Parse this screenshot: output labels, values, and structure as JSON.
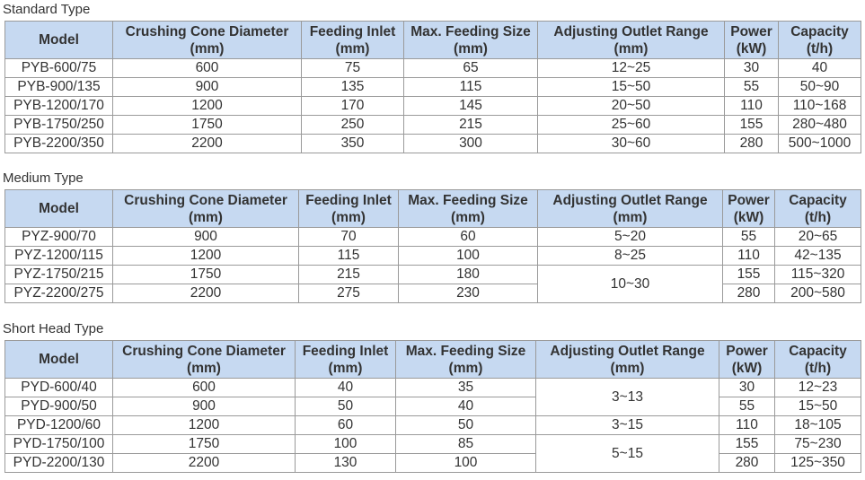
{
  "headers": [
    "Model",
    "Crushing Cone Diameter\n(mm)",
    "Feeding Inlet\n(mm)",
    "Max. Feeding Size\n(mm)",
    "Adjusting Outlet Range\n(mm)",
    "Power\n(kW)",
    "Capacity\n(t/h)"
  ],
  "colors": {
    "header_bg": "#c6d9f1",
    "border": "#9a9a9a",
    "text": "#333333"
  },
  "tables": [
    {
      "title": "Standard Type",
      "rows": [
        [
          "PYB-600/75",
          "600",
          "75",
          "65",
          "12~25",
          "30",
          "40"
        ],
        [
          "PYB-900/135",
          "900",
          "135",
          "115",
          "15~50",
          "55",
          "50~90"
        ],
        [
          "PYB-1200/170",
          "1200",
          "170",
          "145",
          "20~50",
          "110",
          "110~168"
        ],
        [
          "PYB-1750/250",
          "1750",
          "250",
          "215",
          "25~60",
          "155",
          "280~480"
        ],
        [
          "PYB-2200/350",
          "2200",
          "350",
          "300",
          "30~60",
          "280",
          "500~1000"
        ]
      ]
    },
    {
      "title": "Medium Type",
      "rows": [
        [
          "PYZ-900/70",
          "900",
          "70",
          "60",
          "5~20",
          "55",
          "20~65"
        ],
        [
          "PYZ-1200/115",
          "1200",
          "115",
          "100",
          "8~25",
          "110",
          "42~135"
        ],
        [
          "PYZ-1750/215",
          "1750",
          "215",
          "180",
          {
            "v": "10~30",
            "rowspan": 2
          },
          "155",
          "115~320"
        ],
        [
          "PYZ-2200/275",
          "2200",
          "275",
          "230",
          null,
          "280",
          "200~580"
        ]
      ]
    },
    {
      "title": "Short Head Type",
      "rows": [
        [
          "PYD-600/40",
          "600",
          "40",
          "35",
          {
            "v": "3~13",
            "rowspan": 2
          },
          "30",
          "12~23"
        ],
        [
          "PYD-900/50",
          "900",
          "50",
          "40",
          null,
          "55",
          "15~50"
        ],
        [
          "PYD-1200/60",
          "1200",
          "60",
          "50",
          "3~15",
          "110",
          "18~105"
        ],
        [
          "PYD-1750/100",
          "1750",
          "100",
          "85",
          {
            "v": "5~15",
            "rowspan": 2
          },
          "155",
          "75~230"
        ],
        [
          "PYD-2200/130",
          "2200",
          "130",
          "100",
          null,
          "280",
          "125~350"
        ]
      ]
    }
  ]
}
